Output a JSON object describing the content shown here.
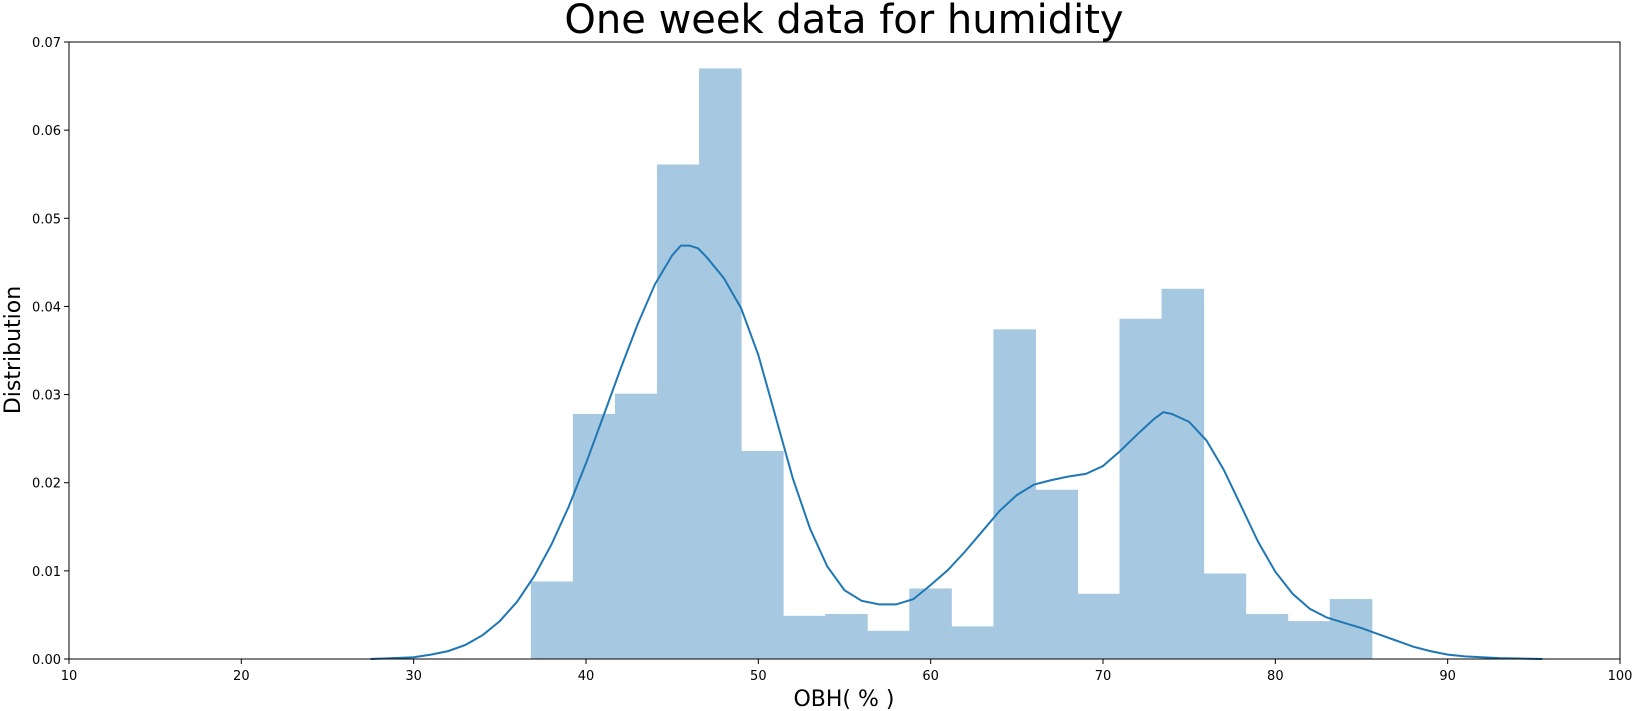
{
  "chart_data": {
    "type": "bar",
    "title": "One week data for humidity",
    "xlabel": "OBH( % )",
    "ylabel": "Distribution",
    "xlim": [
      10,
      100
    ],
    "ylim": [
      0,
      0.07
    ],
    "xticks": [
      "10",
      "20",
      "30",
      "40",
      "50",
      "60",
      "70",
      "80",
      "90",
      "100"
    ],
    "yticks": [
      "0.00",
      "0.01",
      "0.02",
      "0.03",
      "0.04",
      "0.05",
      "0.06",
      "0.07"
    ],
    "grid": false,
    "series": [
      {
        "kind": "histogram",
        "bin_edges": [
          36.8,
          39.24,
          41.68,
          44.12,
          46.56,
          49.0,
          51.44,
          53.88,
          56.32,
          58.76,
          61.2,
          63.64,
          66.08,
          68.52,
          70.96,
          73.4,
          75.84,
          78.28,
          80.72,
          83.16,
          85.6
        ],
        "values": [
          0.0088,
          0.0278,
          0.0301,
          0.0561,
          0.067,
          0.0236,
          0.0049,
          0.0051,
          0.0032,
          0.008,
          0.0037,
          0.0374,
          0.0192,
          0.0074,
          0.0386,
          0.042,
          0.0097,
          0.0051,
          0.0043,
          0.0068
        ],
        "color": "#a6c8e1"
      },
      {
        "kind": "kde",
        "x": [
          27.5,
          30,
          31,
          32,
          33,
          34,
          35,
          36,
          37,
          38,
          39,
          40,
          41,
          42,
          43,
          44,
          45,
          45.5,
          46,
          46.5,
          47,
          48,
          49,
          50,
          51,
          52,
          53,
          54,
          55,
          56,
          57,
          58,
          59,
          60,
          61,
          62,
          63,
          64,
          65,
          66,
          67,
          68,
          69,
          70,
          71,
          72,
          73,
          73.5,
          74,
          75,
          76,
          77,
          78,
          79,
          80,
          81,
          82,
          83,
          84,
          85,
          86,
          87,
          88,
          89,
          90,
          91,
          92,
          93,
          95.5
        ],
        "y": [
          0.0,
          0.0002,
          0.0005,
          0.0009,
          0.0016,
          0.0027,
          0.0043,
          0.0065,
          0.0094,
          0.013,
          0.0173,
          0.0222,
          0.0275,
          0.0329,
          0.038,
          0.0425,
          0.0458,
          0.0469,
          0.0469,
          0.0466,
          0.0456,
          0.0432,
          0.0398,
          0.0345,
          0.0275,
          0.0205,
          0.0148,
          0.0105,
          0.0078,
          0.0066,
          0.0062,
          0.0062,
          0.0068,
          0.0084,
          0.0101,
          0.0122,
          0.0145,
          0.0168,
          0.0186,
          0.0198,
          0.0203,
          0.0207,
          0.021,
          0.0219,
          0.0236,
          0.0255,
          0.0273,
          0.028,
          0.0278,
          0.0269,
          0.0248,
          0.0215,
          0.0174,
          0.0133,
          0.0099,
          0.0074,
          0.0057,
          0.0047,
          0.0041,
          0.0035,
          0.0028,
          0.0021,
          0.0014,
          0.0009,
          0.0005,
          0.0003,
          0.0002,
          0.0001,
          0.0
        ],
        "color": "#1f77b4"
      }
    ]
  }
}
